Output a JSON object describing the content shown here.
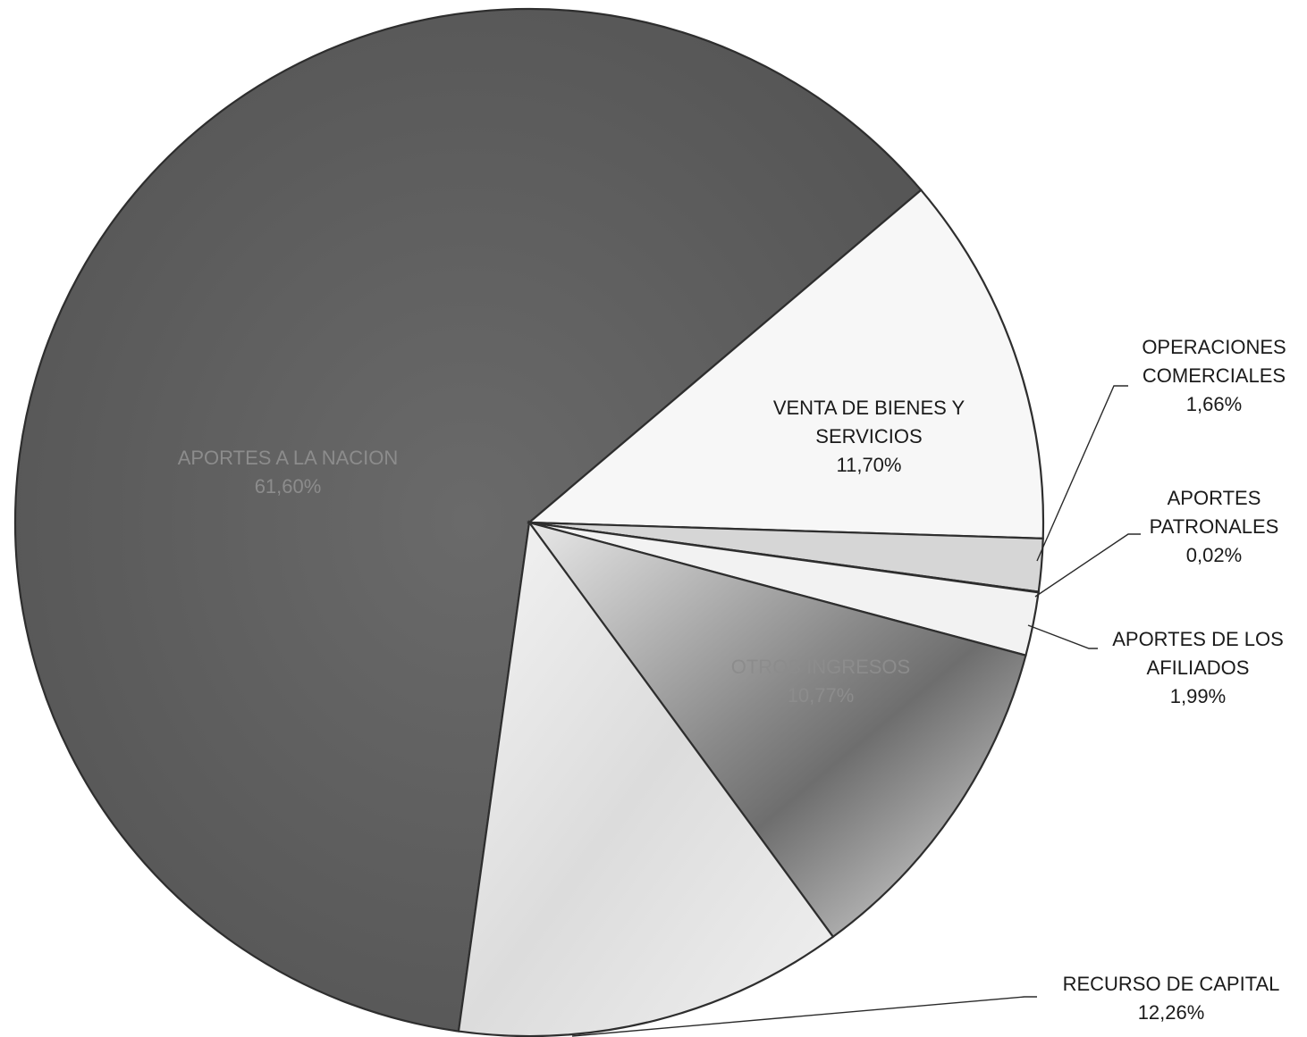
{
  "chart_data": {
    "type": "pie",
    "title": "",
    "slices": [
      {
        "label_lines": [
          "APORTES A LA NACION"
        ],
        "value_label": "61,60%",
        "value": 61.6,
        "color": "#5c5c5c"
      },
      {
        "label_lines": [
          "VENTA DE BIENES Y",
          "SERVICIOS"
        ],
        "value_label": "11,70%",
        "value": 11.7,
        "color": "#f7f7f7"
      },
      {
        "label_lines": [
          "OPERACIONES",
          "COMERCIALES"
        ],
        "value_label": "1,66%",
        "value": 1.66,
        "color": "#d6d6d6"
      },
      {
        "label_lines": [
          "APORTES",
          "PATRONALES"
        ],
        "value_label": "0,02%",
        "value": 0.02,
        "color": "#9a9a9a"
      },
      {
        "label_lines": [
          "APORTES DE LOS",
          "AFILIADOS"
        ],
        "value_label": "1,99%",
        "value": 1.99,
        "color": "#f2f2f2"
      },
      {
        "label_lines": [
          "OTROS INGRESOS"
        ],
        "value_label": "10,77%",
        "value": 10.77,
        "color": "#b4b4b4"
      },
      {
        "label_lines": [
          "RECURSO DE CAPITAL"
        ],
        "value_label": "12,26%",
        "value": 12.26,
        "color": "#e6e6e6"
      }
    ]
  }
}
